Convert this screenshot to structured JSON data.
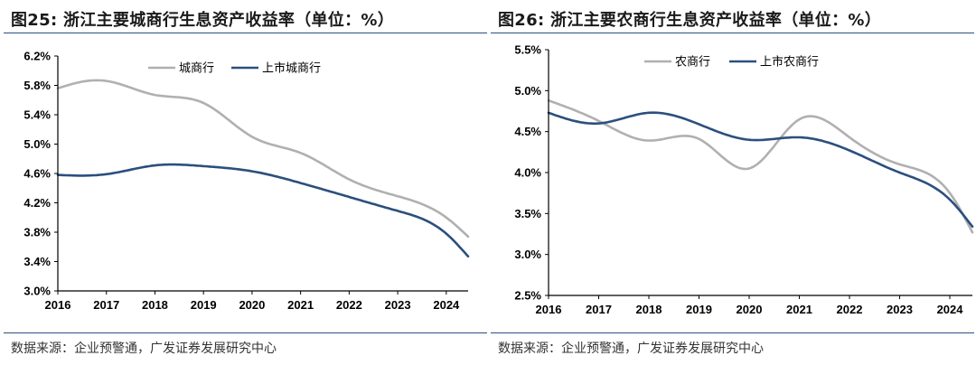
{
  "colors": {
    "series_gray": "#b0b0b0",
    "series_blue": "#2b4f7e",
    "axis": "#000000",
    "rule": "#2b4f7e"
  },
  "chart_data": [
    {
      "type": "line",
      "title": "图25:  浙江主要城商行生息资产收益率（单位：%）",
      "source": "数据来源：企业预警通，广发证券发展研究中心",
      "x": [
        2016,
        2017,
        2018,
        2019,
        2020,
        2021,
        2022,
        2023,
        2024
      ],
      "xlim": [
        2016,
        2024.45
      ],
      "ylim": [
        3.0,
        6.2
      ],
      "yticks": [
        3.0,
        3.4,
        3.8,
        4.2,
        4.6,
        5.0,
        5.4,
        5.8,
        6.2
      ],
      "ytick_labels": [
        "3.0%",
        "3.4%",
        "3.8%",
        "4.2%",
        "4.6%",
        "5.0%",
        "5.4%",
        "5.8%",
        "6.2%"
      ],
      "xtick_labels": [
        "2016",
        "2017",
        "2018",
        "2019",
        "2020",
        "2021",
        "2022",
        "2023",
        "2024"
      ],
      "legend_position": "top-center",
      "series": [
        {
          "name": "城商行",
          "color": "#b0b0b0",
          "points": [
            [
              2016,
              5.76
            ],
            [
              2016.5,
              5.85
            ],
            [
              2017,
              5.86
            ],
            [
              2018,
              5.67
            ],
            [
              2019,
              5.56
            ],
            [
              2020,
              5.1
            ],
            [
              2021,
              4.88
            ],
            [
              2022,
              4.52
            ],
            [
              2023,
              4.29
            ],
            [
              2024,
              4.0
            ],
            [
              2024.45,
              3.74
            ]
          ]
        },
        {
          "name": "上市城商行",
          "color": "#2b4f7e",
          "points": [
            [
              2016,
              4.58
            ],
            [
              2017,
              4.59
            ],
            [
              2018,
              4.71
            ],
            [
              2019,
              4.7
            ],
            [
              2020,
              4.63
            ],
            [
              2021,
              4.47
            ],
            [
              2022,
              4.28
            ],
            [
              2023,
              4.09
            ],
            [
              2024,
              3.78
            ],
            [
              2024.45,
              3.47
            ]
          ]
        }
      ]
    },
    {
      "type": "line",
      "title": "图26:  浙江主要农商行生息资产收益率（单位：%）",
      "source": "数据来源：企业预警通，广发证券发展研究中心",
      "x": [
        2016,
        2017,
        2018,
        2019,
        2020,
        2021,
        2022,
        2023,
        2024
      ],
      "xlim": [
        2016,
        2024.45
      ],
      "ylim": [
        2.5,
        5.5
      ],
      "yticks": [
        2.5,
        3.0,
        3.5,
        4.0,
        4.5,
        5.0,
        5.5
      ],
      "ytick_labels": [
        "2.5%",
        "3.0%",
        "3.5%",
        "4.0%",
        "4.5%",
        "5.0%",
        "5.5%"
      ],
      "xtick_labels": [
        "2016",
        "2017",
        "2018",
        "2019",
        "2020",
        "2021",
        "2022",
        "2023",
        "2024"
      ],
      "legend_position": "top-center",
      "series": [
        {
          "name": "农商行",
          "color": "#b0b0b0",
          "points": [
            [
              2016,
              4.88
            ],
            [
              2017,
              4.63
            ],
            [
              2018,
              4.39
            ],
            [
              2019,
              4.41
            ],
            [
              2020,
              4.05
            ],
            [
              2021,
              4.65
            ],
            [
              2022,
              4.43
            ],
            [
              2023,
              4.1
            ],
            [
              2024,
              3.75
            ],
            [
              2024.45,
              3.27
            ]
          ]
        },
        {
          "name": "上市农商行",
          "color": "#2b4f7e",
          "points": [
            [
              2016,
              4.73
            ],
            [
              2017,
              4.6
            ],
            [
              2018,
              4.73
            ],
            [
              2019,
              4.59
            ],
            [
              2020,
              4.4
            ],
            [
              2021,
              4.43
            ],
            [
              2022,
              4.27
            ],
            [
              2023,
              4.0
            ],
            [
              2024,
              3.67
            ],
            [
              2024.45,
              3.34
            ]
          ]
        }
      ]
    }
  ]
}
